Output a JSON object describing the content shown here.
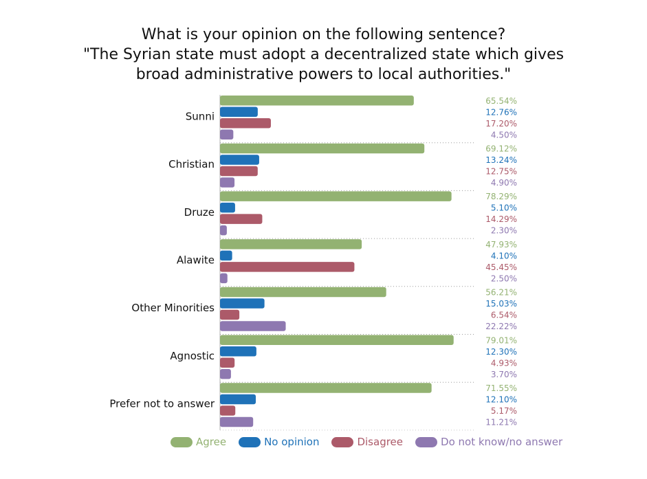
{
  "chart_data": {
    "type": "bar",
    "orientation": "horizontal",
    "title": [
      "What is your opinion on the following sentence?",
      "\"The Syrian state must adopt a decentralized state which gives",
      "broad administrative powers to local authorities.\""
    ],
    "xlim": [
      0,
      100
    ],
    "categories": [
      "Sunni",
      "Christian",
      "Druze",
      "Alawite",
      "Other Minorities",
      "Agnostic",
      "Prefer not to answer"
    ],
    "series": [
      {
        "name": "Agree",
        "color": "#93b272",
        "values": [
          65.54,
          69.12,
          78.29,
          47.93,
          56.21,
          79.01,
          71.55
        ]
      },
      {
        "name": "No opinion",
        "color": "#1f72b8",
        "values": [
          12.76,
          13.24,
          5.1,
          4.1,
          15.03,
          12.3,
          12.1
        ]
      },
      {
        "name": "Disagree",
        "color": "#ac5a69",
        "values": [
          17.2,
          12.75,
          14.29,
          45.45,
          6.54,
          4.93,
          5.17
        ]
      },
      {
        "name": "Do not know/no answer",
        "color": "#8e78b0",
        "values": [
          4.5,
          4.9,
          2.3,
          2.5,
          22.22,
          3.7,
          11.21
        ]
      }
    ],
    "value_labels": [
      [
        "65.54%",
        "12.76%",
        "17.20%",
        "4.50%"
      ],
      [
        "69.12%",
        "13.24%",
        "12.75%",
        "4.90%"
      ],
      [
        "78.29%",
        "5.10%",
        "14.29%",
        "2.30%"
      ],
      [
        "47.93%",
        "4.10%",
        "45.45%",
        "2.50%"
      ],
      [
        "56.21%",
        "15.03%",
        "6.54%",
        "22.22%"
      ],
      [
        "79.01%",
        "12.30%",
        "4.93%",
        "3.70%"
      ],
      [
        "71.55%",
        "12.10%",
        "5.17%",
        "11.21%"
      ]
    ],
    "legend_position": "bottom",
    "grid": false
  }
}
